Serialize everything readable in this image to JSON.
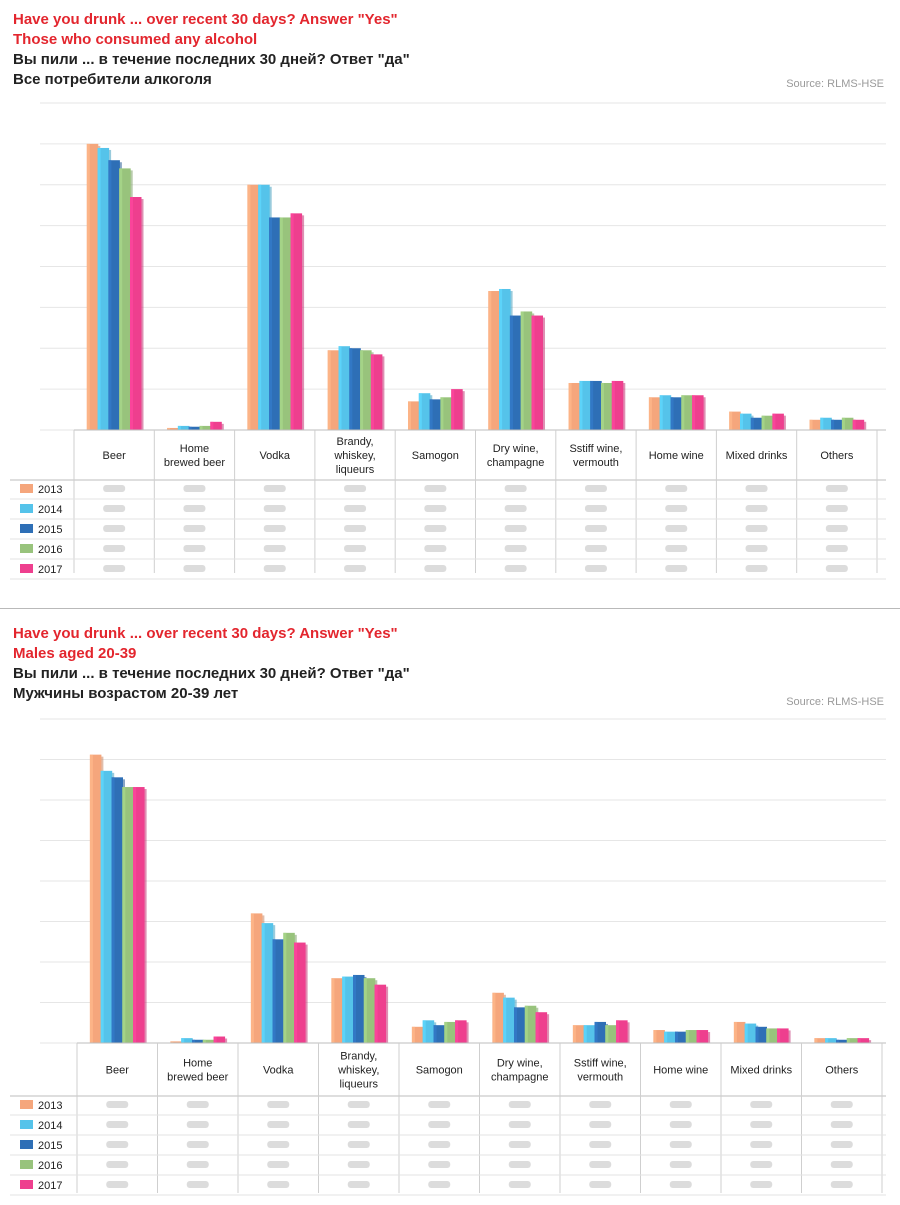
{
  "panels": [
    {
      "title_en": "Have you drunk ... over recent 30 days? Answer \"Yes\"",
      "subtitle_en": "Those who consumed any alcohol",
      "title_ru": "Вы пили ... в течение последних 30 дней? Ответ \"да\"",
      "subtitle_ru": "Все потребители алкоголя",
      "source": "Source: RLMS-HSE"
    },
    {
      "title_en": "Have you drunk ... over recent 30 days? Answer \"Yes\"",
      "subtitle_en": "Males aged 20-39",
      "title_ru": "Вы пили ... в течение последних 30 дней? Ответ \"да\"",
      "subtitle_ru": "Мужчины возрастом 20-39 лет",
      "source": "Source: RLMS-HSE"
    }
  ],
  "chart_data": [
    {
      "type": "bar",
      "categories": [
        "Beer",
        "Home brewed beer",
        "Vodka",
        "Brandy, whiskey, liqueurs",
        "Samogon",
        "Dry wine, champagne",
        "Sstiff wine, vermouth",
        "Home wine",
        "Mixed drinks",
        "Others"
      ],
      "series": [
        {
          "name": "2013",
          "color": "#f5a67c",
          "values": [
            70,
            0.5,
            60,
            19.5,
            7,
            34,
            11.5,
            8,
            4.5,
            2.5
          ]
        },
        {
          "name": "2014",
          "color": "#55c3ea",
          "values": [
            69,
            1.0,
            60,
            20.5,
            9,
            34.5,
            12,
            8.5,
            4.0,
            3.0
          ]
        },
        {
          "name": "2015",
          "color": "#2e6fb6",
          "values": [
            66,
            0.8,
            52,
            20,
            7.5,
            28,
            12,
            8,
            3.0,
            2.5
          ]
        },
        {
          "name": "2016",
          "color": "#98c37c",
          "values": [
            64,
            1.0,
            52,
            19.5,
            8,
            29,
            11.5,
            8.5,
            3.5,
            3.0
          ]
        },
        {
          "name": "2017",
          "color": "#ee3f8e",
          "values": [
            57,
            2.0,
            53,
            18.5,
            10,
            28,
            12,
            8.5,
            4.0,
            2.5
          ]
        }
      ],
      "ylim": [
        0,
        80
      ],
      "grid": true
    },
    {
      "type": "bar",
      "categories": [
        "Beer",
        "Home brewed beer",
        "Vodka",
        "Brandy, whiskey, liqueurs",
        "Samogon",
        "Dry wine, champagne",
        "Sstiff wine, vermouth",
        "Home wine",
        "Mixed drinks",
        "Others"
      ],
      "series": [
        {
          "name": "2013",
          "color": "#f5a67c",
          "values": [
            89,
            0.5,
            40,
            20,
            5,
            15.5,
            5.5,
            4,
            6.5,
            1.5
          ]
        },
        {
          "name": "2014",
          "color": "#55c3ea",
          "values": [
            84,
            1.5,
            37,
            20.5,
            7,
            14,
            5.5,
            3.5,
            6.0,
            1.5
          ]
        },
        {
          "name": "2015",
          "color": "#2e6fb6",
          "values": [
            82,
            1.0,
            32,
            21,
            5.5,
            11,
            6.5,
            3.5,
            5,
            1.0
          ]
        },
        {
          "name": "2016",
          "color": "#98c37c",
          "values": [
            79,
            1.0,
            34,
            20,
            6.5,
            11.5,
            5.5,
            4,
            4.5,
            1.5
          ]
        },
        {
          "name": "2017",
          "color": "#ee3f8e",
          "values": [
            79,
            2.0,
            31,
            18,
            7,
            9.5,
            7,
            4,
            4.5,
            1.5
          ]
        }
      ],
      "ylim": [
        0,
        100
      ],
      "grid": true
    }
  ]
}
